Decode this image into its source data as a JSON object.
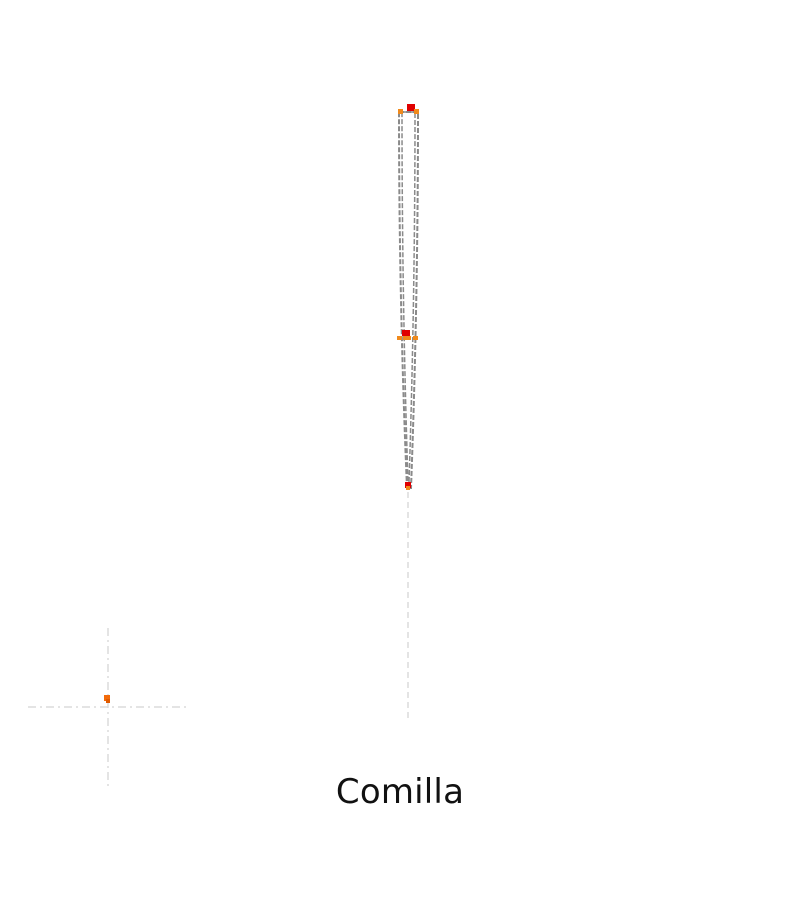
{
  "title": "Comilla",
  "colors": {
    "outline": "#8a8a8a",
    "guide": "#d3d3d3",
    "point_on": "#e00000",
    "point_off": "#f08a1c",
    "point_small": "#f36b0a",
    "background": "#ffffff",
    "title_text": "#111111"
  }
}
